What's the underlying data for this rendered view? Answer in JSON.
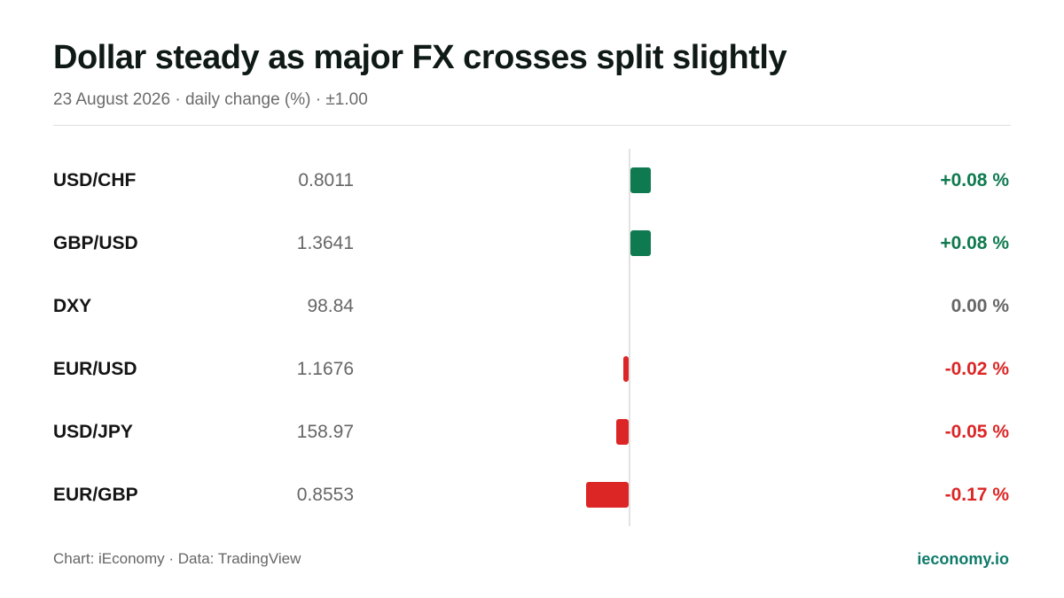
{
  "title": "Dollar steady as major FX crosses split slightly",
  "subtitle": "23 August 2026 · daily change (%) · ±1.00",
  "colors": {
    "positive": "#0f7a4f",
    "negative": "#dc2626",
    "neutral": "#666666",
    "brand": "#0f7a6a"
  },
  "footer": {
    "source": "Chart: iEconomy · Data: TradingView",
    "brand": "ieconomy.io"
  },
  "chart_data": {
    "type": "bar",
    "orientation": "horizontal",
    "categories": [
      "USD/CHF",
      "GBP/USD",
      "DXY",
      "EUR/USD",
      "USD/JPY",
      "EUR/GBP"
    ],
    "prices": [
      "0.8011",
      "1.3641",
      "98.84",
      "1.1676",
      "158.97",
      "0.8553"
    ],
    "values": [
      0.08,
      0.08,
      0.0,
      -0.02,
      -0.05,
      -0.17
    ],
    "labels": [
      "+0.08 %",
      "+0.08 %",
      "0.00 %",
      "-0.02 %",
      "-0.05 %",
      "-0.17 %"
    ],
    "xlim": [
      -1,
      1
    ]
  }
}
